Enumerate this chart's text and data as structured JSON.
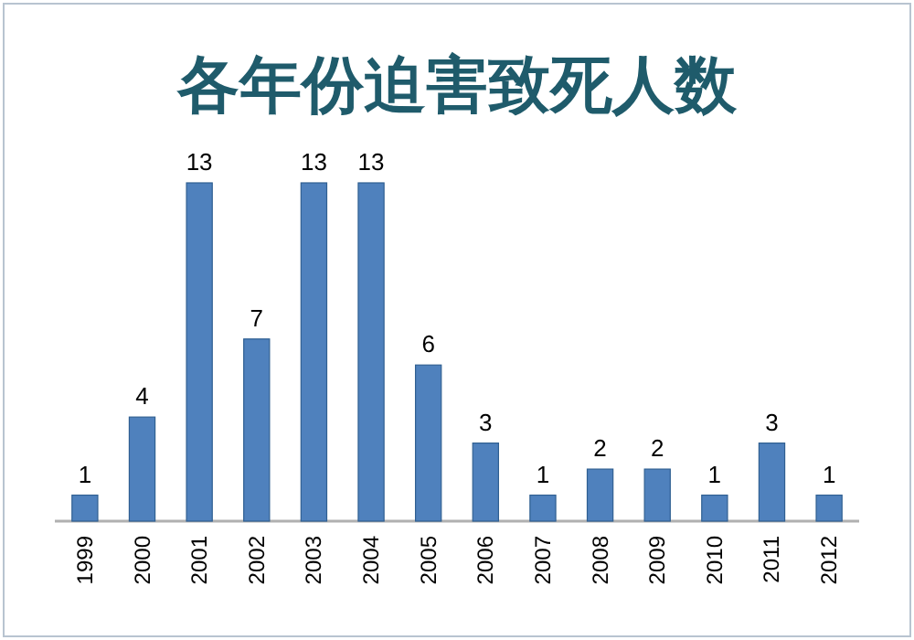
{
  "chart_data": {
    "type": "bar",
    "title": "各年份迫害致死人数",
    "categories": [
      "1999",
      "2000",
      "2001",
      "2002",
      "2003",
      "2004",
      "2005",
      "2006",
      "2007",
      "2008",
      "2009",
      "2010",
      "2011",
      "2012"
    ],
    "values": [
      1,
      4,
      13,
      7,
      13,
      13,
      6,
      3,
      1,
      2,
      2,
      1,
      3,
      1
    ],
    "color": "#4f81bd",
    "data_labels": true,
    "grid": false
  }
}
